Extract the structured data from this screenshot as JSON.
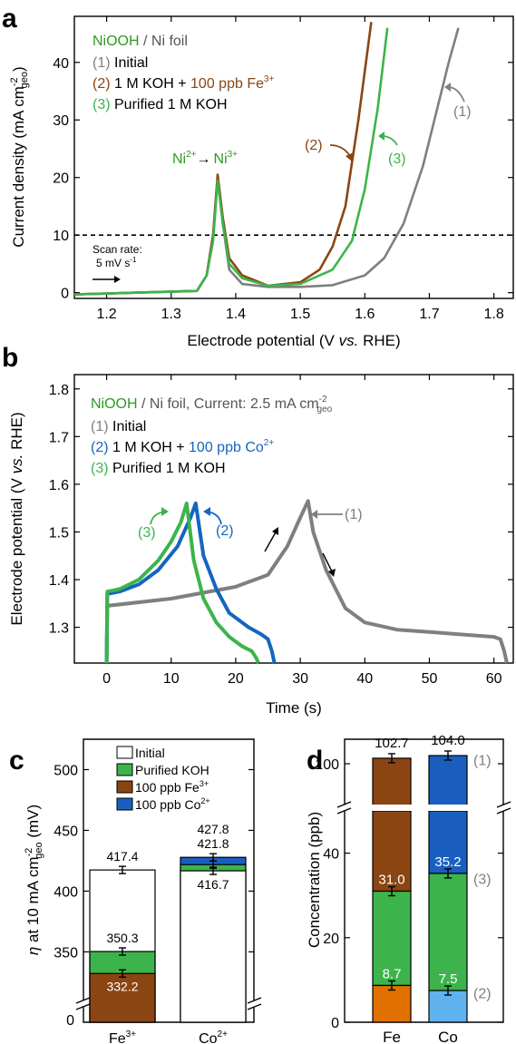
{
  "colors": {
    "initial": "#7f7f7f",
    "fe": "#8b4513",
    "co": "#1565c0",
    "purified": "#3cb44b",
    "nioo": "#2e9a22",
    "feBar": "#8b4513",
    "coBar": "#1a5fbf",
    "greenBar": "#3cb44b",
    "orange": "#e07000",
    "lightblue": "#5fb2ee"
  },
  "chart_data": [
    {
      "panel": "a",
      "type": "line",
      "xlabel": "Electrode potential (V vs. RHE)",
      "ylabel": "Current density (mA cm-2 geo)",
      "xlim": [
        1.15,
        1.83
      ],
      "ylim": [
        -1,
        48
      ],
      "xticks": [
        1.2,
        1.3,
        1.4,
        1.5,
        1.6,
        1.7,
        1.8
      ],
      "yticks": [
        0,
        10,
        20,
        30,
        40
      ],
      "reference_line": 10,
      "legend": [
        "NiOOH / Ni foil",
        "(1) Initial",
        "(2) 1 M KOH + 100 ppb Fe3+",
        "(3) Purified 1 M KOH"
      ],
      "annotations": [
        "Ni2+ → Ni3+",
        "Scan rate: 5 mV s-1",
        "(1)",
        "(2)",
        "(3)"
      ],
      "series": [
        {
          "name": "(1) Initial",
          "x": [
            1.15,
            1.34,
            1.355,
            1.365,
            1.372,
            1.38,
            1.39,
            1.41,
            1.45,
            1.5,
            1.55,
            1.6,
            1.63,
            1.66,
            1.69,
            1.71,
            1.73,
            1.745
          ],
          "y": [
            -0.3,
            0.3,
            3,
            10,
            20,
            12,
            4,
            1.5,
            1.0,
            1.0,
            1.3,
            3,
            6,
            12,
            22,
            31,
            40,
            46
          ]
        },
        {
          "name": "(2) 1 M KOH + 100 ppb Fe3+",
          "x": [
            1.15,
            1.34,
            1.355,
            1.365,
            1.372,
            1.38,
            1.39,
            1.41,
            1.45,
            1.5,
            1.53,
            1.55,
            1.57,
            1.59,
            1.61
          ],
          "y": [
            -0.3,
            0.3,
            3,
            10,
            20.5,
            13,
            6,
            3,
            1.2,
            1.8,
            4,
            8,
            15,
            30,
            47
          ]
        },
        {
          "name": "(3) Purified 1 M KOH",
          "x": [
            1.15,
            1.34,
            1.355,
            1.365,
            1.372,
            1.38,
            1.39,
            1.41,
            1.45,
            1.5,
            1.55,
            1.58,
            1.6,
            1.62,
            1.635
          ],
          "y": [
            -0.3,
            0.3,
            3,
            9,
            19.5,
            12,
            5,
            2.5,
            1.2,
            1.5,
            4,
            9,
            18,
            32,
            46
          ]
        }
      ]
    },
    {
      "panel": "b",
      "type": "line",
      "xlabel": "Time (s)",
      "ylabel": "Electrode potential (V vs. RHE)",
      "xlim": [
        -5,
        63
      ],
      "ylim": [
        1.225,
        1.83
      ],
      "xticks": [
        0,
        10,
        20,
        30,
        40,
        50,
        60
      ],
      "yticks": [
        1.3,
        1.4,
        1.5,
        1.6,
        1.7,
        1.8
      ],
      "legend": [
        "NiOOH / Ni foil, Current: 2.5 mA cm-2 geo",
        "(1) Initial",
        "(2) 1 M KOH + 100 ppb Co2+",
        "(3) Purified 1 M KOH"
      ],
      "annotations": [
        "(1)",
        "(2)",
        "(3)"
      ],
      "series": [
        {
          "name": "(1) Initial",
          "x": [
            0,
            0.1,
            10,
            20,
            25,
            28,
            30,
            31.2,
            32,
            34,
            37,
            40,
            45,
            50,
            55,
            60,
            61,
            61.6,
            62
          ],
          "y": [
            1.225,
            1.345,
            1.36,
            1.385,
            1.41,
            1.47,
            1.53,
            1.565,
            1.5,
            1.42,
            1.34,
            1.31,
            1.295,
            1.29,
            1.285,
            1.28,
            1.275,
            1.25,
            1.225
          ]
        },
        {
          "name": "(2) 1 M KOH + 100 ppb Co2+",
          "x": [
            0,
            0.1,
            2,
            5,
            8,
            11,
            13,
            13.8,
            15,
            17,
            19,
            22,
            24,
            25,
            25.6,
            26
          ],
          "y": [
            1.225,
            1.37,
            1.375,
            1.39,
            1.42,
            1.47,
            1.53,
            1.56,
            1.45,
            1.38,
            1.33,
            1.3,
            1.285,
            1.275,
            1.25,
            1.225
          ]
        },
        {
          "name": "(3) Purified 1 M KOH",
          "x": [
            0,
            0.1,
            2,
            5,
            8,
            10,
            11.5,
            12.4,
            13.5,
            15,
            17,
            19,
            21,
            22.5,
            23.2,
            23.5
          ],
          "y": [
            1.225,
            1.375,
            1.38,
            1.4,
            1.44,
            1.48,
            1.52,
            1.56,
            1.44,
            1.36,
            1.31,
            1.28,
            1.26,
            1.25,
            1.235,
            1.225
          ]
        }
      ]
    },
    {
      "panel": "c",
      "type": "bar",
      "ylabel": "η at 10 mA cm-2 geo (mV)",
      "categories": [
        "Fe3+",
        "Co2+"
      ],
      "ylim": [
        300,
        525
      ],
      "yticks": [
        350,
        400,
        450,
        500
      ],
      "axis_break": true,
      "legend": [
        "Initial",
        "Purified KOH",
        "100 ppb Fe3+",
        "100 ppb Co2+"
      ],
      "bars": [
        {
          "category": "Fe3+",
          "initial": 417.4,
          "purified": 350.3,
          "spiked": 332.2
        },
        {
          "category": "Co2+",
          "initial": 416.7,
          "purified": 421.8,
          "spiked": 427.8
        }
      ],
      "labels": [
        "417.4",
        "350.3",
        "332.2",
        "427.8",
        "421.8",
        "416.7"
      ]
    },
    {
      "panel": "d",
      "type": "bar",
      "ylabel": "Concentration (ppb)",
      "categories": [
        "Fe",
        "Co"
      ],
      "yticks": [
        0,
        20,
        40,
        100
      ],
      "axis_break": true,
      "bars": [
        {
          "category": "Fe",
          "initial": 102.7,
          "purified": 31.0,
          "spiked": 8.7
        },
        {
          "category": "Co",
          "initial": 104.0,
          "purified": 35.2,
          "spiked": 7.5
        }
      ],
      "row_labels": [
        "(1)",
        "(3)",
        "(2)"
      ],
      "labels": [
        "102.7",
        "104.0",
        "31.0",
        "35.2",
        "8.7",
        "7.5"
      ]
    }
  ],
  "text": {
    "a": {
      "letter": "a",
      "nioo": "NiOOH",
      "foil": " / Ni foil",
      "l1": "(1) Initial",
      "l2a": "(2) 1 M KOH + ",
      "l2b": "100 ppb Fe",
      "l2sup": "3+",
      "l3": "(3) Purified 1 M KOH",
      "redox1": "Ni",
      "redox1sup": "2+",
      "arrow": "→",
      "redox2": "Ni",
      "redox2sup": "3+",
      "scan1": "Scan rate:",
      "scan2": "5 mV s",
      "scan2sup": "-1",
      "c1": "(1)",
      "c2": "(2)",
      "c3": "(3)",
      "xlabel": "Electrode potential (V ",
      "xlabelvs": "vs.",
      "xlabel2": " RHE)",
      "ylabel": "Current density (mA cm",
      "ysup": "-2",
      "ysub": "geo",
      "yclose": ")"
    },
    "b": {
      "letter": "b",
      "nioo": "NiOOH",
      "foil": " / Ni foil, Current: 2.5 mA cm",
      "sup": "-2",
      "sub": "geo",
      "l1": "(1) Initial",
      "l2a": "(2) 1 M KOH + ",
      "l2b": "100 ppb Co",
      "l2sup": "2+",
      "l3": "(3) Purified 1 M KOH",
      "c1": "(1)",
      "c2": "(2)",
      "c3": "(3)",
      "xlabel": "Time (s)",
      "ylabel": "Electrode potential (V ",
      "ylabelvs": "vs.",
      "ylabel2": " RHE)"
    },
    "c": {
      "letter": "c",
      "leg1": "Initial",
      "leg2": "Purified KOH",
      "leg3": "100 ppb Fe",
      "leg3sup": "3+",
      "leg4": "100 ppb Co",
      "leg4sup": "2+",
      "eta": "η",
      "ylabel": " at 10 mA cm",
      "ysup": "-2",
      "ysub": "geo",
      "ylabel2": " (mV)",
      "cat1": "Fe",
      "cat1sup": "3+",
      "cat2": "Co",
      "cat2sup": "2+",
      "zero": "0"
    },
    "d": {
      "letter": "d",
      "ylabel": "Concentration (ppb)",
      "cat1": "Fe",
      "cat2": "Co"
    }
  }
}
